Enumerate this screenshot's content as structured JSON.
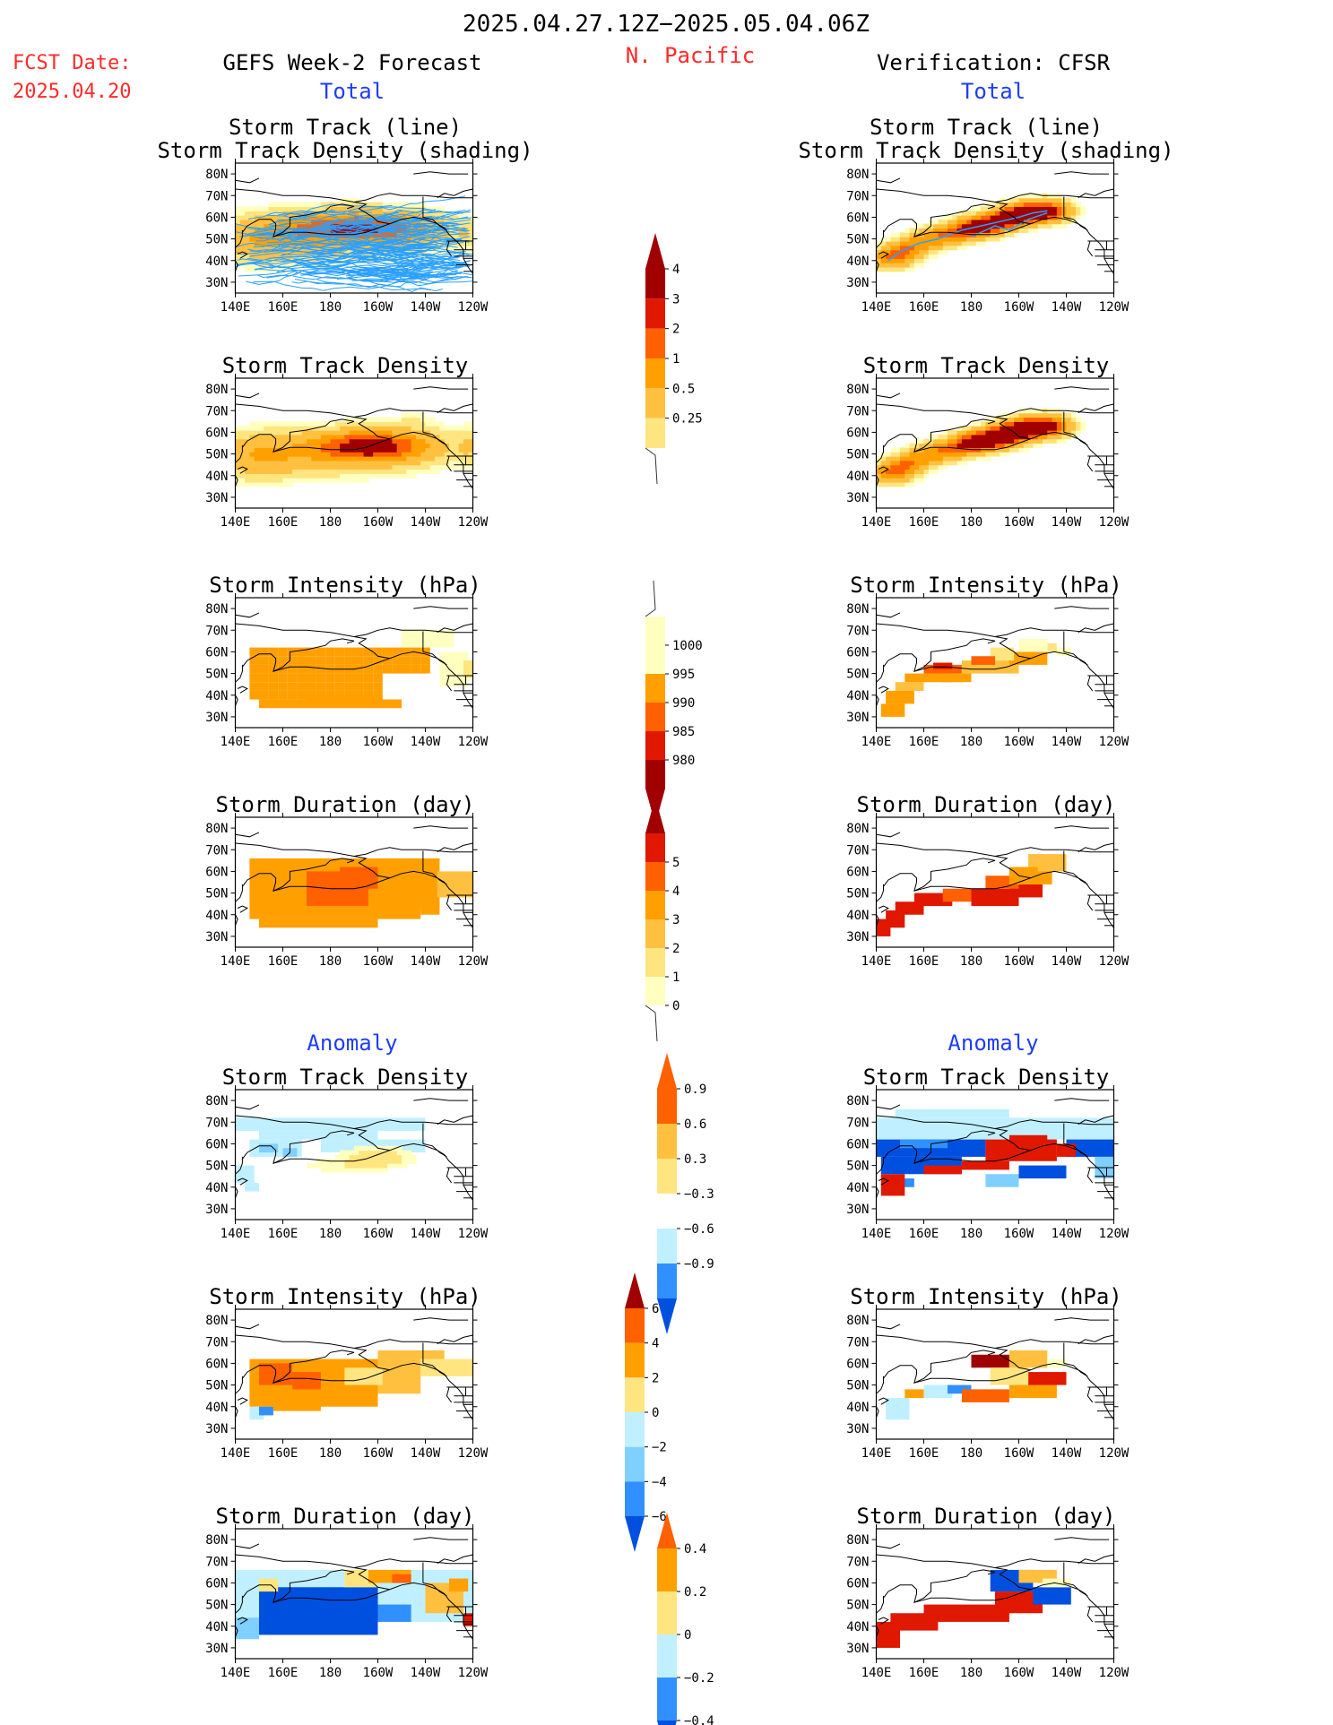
{
  "header": {
    "period": "2025.04.27.12Z−2025.05.04.06Z",
    "region": "N. Pacific",
    "fcst_label": "FCST Date:",
    "fcst_date": "2025.04.20",
    "left_title": "GEFS Week-2 Forecast",
    "right_title": "Verification: CFSR",
    "total_label": "Total",
    "anomaly_label": "Anomaly"
  },
  "panel_titles": {
    "track_line": "Storm Track (line)",
    "track_shading": "Storm Track Density (shading)",
    "density": "Storm Track Density",
    "intensity": "Storm Intensity (hPa)",
    "duration": "Storm Duration (day)"
  },
  "axes": {
    "lat_ticks": [
      "80N",
      "70N",
      "60N",
      "50N",
      "40N",
      "30N"
    ],
    "lon_ticks": [
      "140E",
      "160E",
      "180",
      "160W",
      "140W",
      "120W"
    ]
  },
  "chart_data": [
    {
      "type": "heatmap",
      "name": "forecast_total_track",
      "title": "Storm Track (line) / Storm Track Density (shading)",
      "xlim": [
        140,
        240
      ],
      "ylim": [
        25,
        85
      ],
      "blobs": [
        {
          "lon": 192,
          "lat": 56,
          "sx": 20,
          "sy": 5,
          "amp": 3.4
        },
        {
          "lon": 170,
          "lat": 51,
          "sx": 25,
          "sy": 7,
          "amp": 1.6
        }
      ]
    },
    {
      "type": "heatmap",
      "name": "forecast_total_density",
      "title": "Storm Track Density",
      "xlim": [
        140,
        240
      ],
      "ylim": [
        25,
        85
      ],
      "blobs": [
        {
          "lon": 196,
          "lat": 54,
          "sx": 14,
          "sy": 4.5,
          "amp": 3.6
        },
        {
          "lon": 175,
          "lat": 51,
          "sx": 28,
          "sy": 7,
          "amp": 1.7
        }
      ]
    },
    {
      "type": "heatmap",
      "name": "forecast_total_intensity",
      "title": "Storm Intensity (hPa)",
      "xlim": [
        140,
        240
      ],
      "ylim": [
        25,
        85
      ],
      "cells": "lon 146-200 lat 38-62: 993 hPa"
    },
    {
      "type": "heatmap",
      "name": "forecast_total_duration",
      "title": "Storm Duration (day)",
      "xlim": [
        140,
        240
      ],
      "ylim": [
        25,
        85
      ],
      "cells": "lon 146-202 lat 38-66: 2.5 d; core lon 172-196 lat 44-60: 3.5 d"
    },
    {
      "type": "heatmap",
      "name": "verification_total_density",
      "title": "Storm Track Density",
      "xlim": [
        140,
        240
      ],
      "ylim": [
        25,
        85
      ],
      "note": "band from 40N 145E to 62N 210W"
    },
    {
      "type": "heatmap",
      "name": "forecast_anomaly_density",
      "title": "Storm Track Density",
      "xlim": [
        140,
        240
      ],
      "ylim": [
        25,
        85
      ],
      "blobs": [
        {
          "lon": 200,
          "lat": 54,
          "sx": 10,
          "sy": 3.5,
          "amp": 0.85
        }
      ]
    },
    {
      "type": "heatmap",
      "name": "verification_anomaly_density",
      "title": "Storm Track Density",
      "xlim": [
        140,
        240
      ],
      "ylim": [
        25,
        85
      ]
    }
  ],
  "colorbars": [
    {
      "name": "density",
      "labels": [
        "4",
        "3",
        "2",
        "1",
        "0.5",
        "0.25"
      ]
    },
    {
      "name": "intensity",
      "labels": [
        "1000",
        "995",
        "990",
        "985",
        "980"
      ]
    },
    {
      "name": "duration",
      "labels": [
        "5",
        "4",
        "3",
        "2",
        "1",
        "0"
      ]
    },
    {
      "name": "anom_density",
      "labels": [
        "0.9",
        "0.6",
        "0.3",
        "−0.3",
        "−0.6",
        "−0.9"
      ]
    },
    {
      "name": "anom_intensity",
      "labels": [
        "6",
        "4",
        "2",
        "0",
        "−2",
        "−4",
        "−6"
      ]
    },
    {
      "name": "anom_duration",
      "labels": [
        "0.4",
        "0.2",
        "0",
        "−0.2",
        "−0.4"
      ]
    }
  ],
  "colors": {
    "warm": [
      "#ffffc0",
      "#ffe580",
      "#ffc040",
      "#ffa000",
      "#ff6000",
      "#e01800",
      "#a00000"
    ],
    "cool": [
      "#c0f0ff",
      "#80d0ff",
      "#3090ff",
      "#0050e0"
    ],
    "track": "#2aa0ff"
  }
}
